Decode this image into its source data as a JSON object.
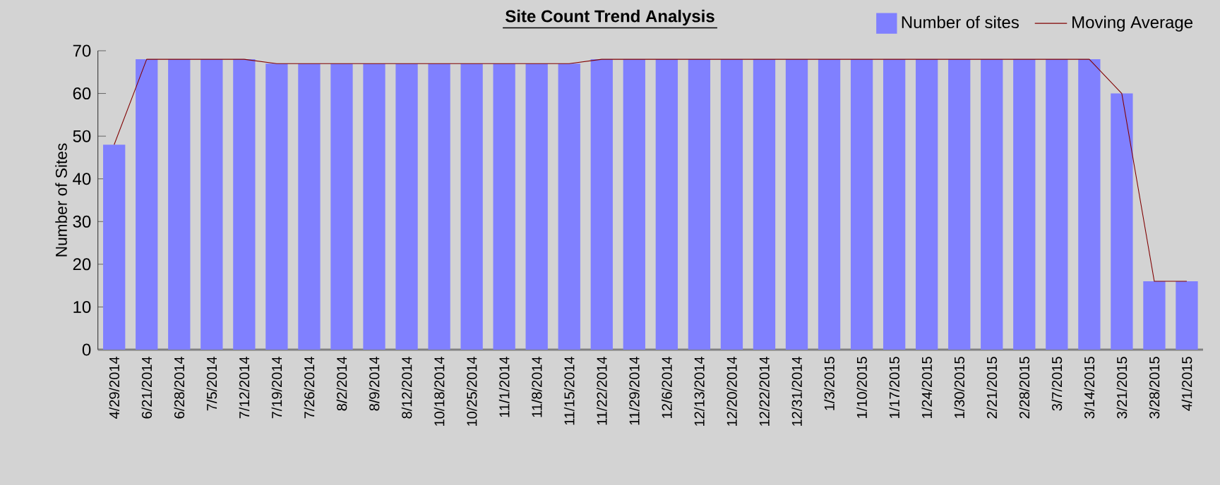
{
  "chart_data": {
    "type": "bar",
    "title": "Site Count Trend Analysis",
    "ylabel": "Number of Sites",
    "categories": [
      "4/29/2014",
      "6/21/2014",
      "6/28/2014",
      "7/5/2014",
      "7/12/2014",
      "7/19/2014",
      "7/26/2014",
      "8/2/2014",
      "8/9/2014",
      "8/12/2014",
      "10/18/2014",
      "10/25/2014",
      "11/1/2014",
      "11/8/2014",
      "11/15/2014",
      "11/22/2014",
      "11/29/2014",
      "12/6/2014",
      "12/13/2014",
      "12/20/2014",
      "12/22/2014",
      "12/31/2014",
      "1/3/2015",
      "1/10/2015",
      "1/17/2015",
      "1/24/2015",
      "1/30/2015",
      "2/21/2015",
      "2/28/2015",
      "3/7/2015",
      "3/14/2015",
      "3/21/2015",
      "3/28/2015",
      "4/1/2015"
    ],
    "series": [
      {
        "name": "Number of sites",
        "color": "#8080ff",
        "values": [
          48,
          68,
          68,
          68,
          68,
          67,
          67,
          67,
          67,
          67,
          67,
          67,
          67,
          67,
          67,
          68,
          68,
          68,
          68,
          68,
          68,
          68,
          68,
          68,
          68,
          68,
          68,
          68,
          68,
          68,
          68,
          60,
          16,
          16
        ]
      },
      {
        "name": "Moving Average",
        "type": "line",
        "color": "#800000",
        "values": [
          48,
          68,
          68,
          68,
          68,
          67,
          67,
          67,
          67,
          67,
          67,
          67,
          67,
          67,
          67,
          68,
          68,
          68,
          68,
          68,
          68,
          68,
          68,
          68,
          68,
          68,
          68,
          68,
          68,
          68,
          68,
          60,
          16,
          16
        ]
      }
    ],
    "ylim": [
      0,
      70
    ],
    "yticks": [
      0,
      10,
      20,
      30,
      40,
      50,
      60,
      70
    ],
    "grid": false,
    "legend": "top right"
  }
}
